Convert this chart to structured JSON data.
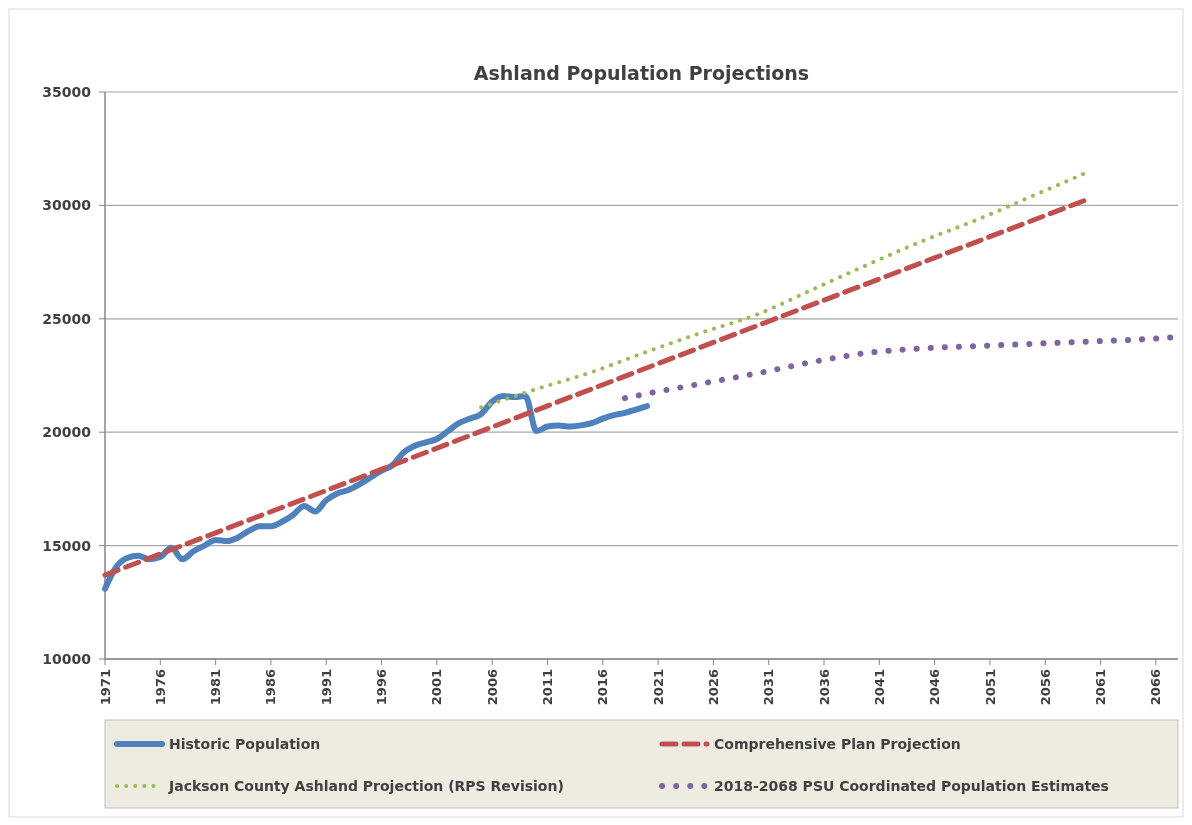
{
  "chart_data": {
    "type": "line",
    "title": "Ashland Population Projections",
    "xlim": [
      1971,
      2068
    ],
    "xticks": [
      1971,
      1976,
      1981,
      1986,
      1991,
      1996,
      2001,
      2006,
      2011,
      2016,
      2021,
      2026,
      2031,
      2036,
      2041,
      2046,
      2051,
      2056,
      2061,
      2066
    ],
    "ylim": [
      10000,
      35000
    ],
    "yticks": [
      10000,
      15000,
      20000,
      25000,
      30000,
      35000
    ],
    "grid": "y",
    "legend": "bottom",
    "marker": "none",
    "series": [
      {
        "name": "Historic Population",
        "color": "#4f81bd",
        "line_style": "solid",
        "x": [
          1971,
          1972,
          1973,
          1974,
          1975,
          1976,
          1977,
          1978,
          1979,
          1980,
          1981,
          1982,
          1983,
          1984,
          1985,
          1986,
          1987,
          1988,
          1989,
          1990,
          1991,
          1992,
          1993,
          1994,
          1995,
          1996,
          1997,
          1998,
          1999,
          2000,
          2001,
          2002,
          2003,
          2004,
          2005,
          2006,
          2007,
          2008,
          2009,
          2010,
          2011,
          2012,
          2013,
          2014,
          2015,
          2016,
          2017,
          2018,
          2019,
          2020
        ],
        "values": [
          13100,
          14050,
          14450,
          14550,
          14400,
          14500,
          14900,
          14400,
          14750,
          15000,
          15250,
          15200,
          15350,
          15650,
          15850,
          15850,
          16050,
          16350,
          16750,
          16500,
          17000,
          17300,
          17450,
          17700,
          18000,
          18300,
          18550,
          19100,
          19400,
          19550,
          19700,
          20050,
          20400,
          20600,
          20800,
          21350,
          21600,
          21550,
          21600,
          20050,
          20250,
          20300,
          20250,
          20300,
          20400,
          20600,
          20750,
          20850,
          21000,
          21150
        ]
      },
      {
        "name": "Comprehensive Plan Projection",
        "color": "#c0504d",
        "line_style": "dashed",
        "x": [
          1971,
          2060
        ],
        "values": [
          13700,
          30300
        ]
      },
      {
        "name": "Jackson County Ashland Projection (RPS Revision)",
        "color": "#9bbb59",
        "line_style": "dotted",
        "x": [
          2005,
          2010,
          2015,
          2020,
          2025,
          2030,
          2035,
          2040,
          2045,
          2050,
          2055,
          2060
        ],
        "values": [
          21100,
          21900,
          22650,
          23550,
          24400,
          25200,
          26300,
          27400,
          28450,
          29400,
          30450,
          31500
        ]
      },
      {
        "name": "2018-2068 PSU Coordinated Population Estimates",
        "color": "#8064a2",
        "line_style": "dotted",
        "x": [
          2018,
          2020,
          2025,
          2030,
          2035,
          2040,
          2045,
          2050,
          2055,
          2060,
          2065,
          2068
        ],
        "values": [
          21500,
          21700,
          22150,
          22600,
          23100,
          23500,
          23700,
          23800,
          23900,
          24000,
          24100,
          24200
        ]
      }
    ]
  }
}
